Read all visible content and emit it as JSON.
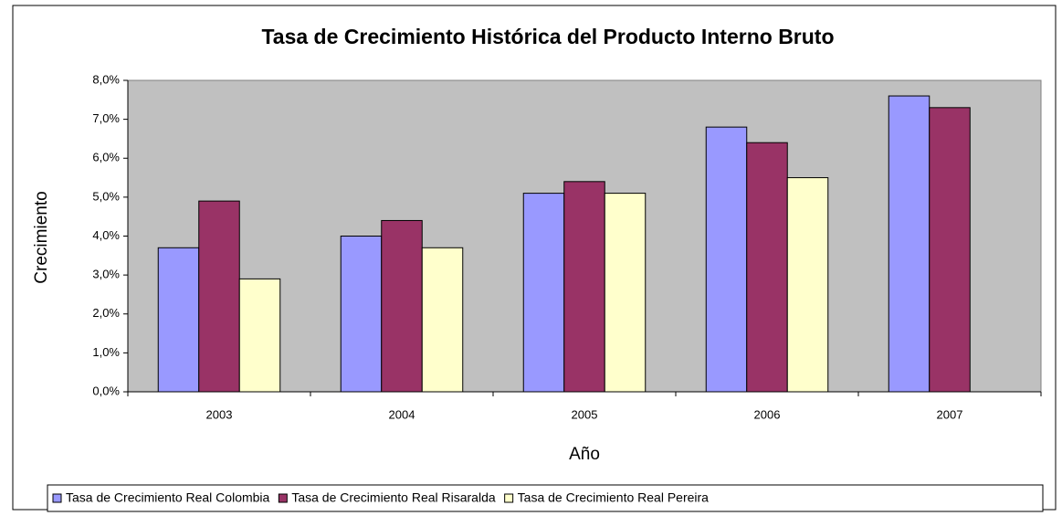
{
  "chart_data": {
    "type": "bar",
    "title": "Tasa de Crecimiento Histórica del Producto Interno Bruto",
    "x_label": "Año",
    "y_label": "Crecimiento",
    "categories": [
      "2003",
      "2004",
      "2005",
      "2006",
      "2007"
    ],
    "series": [
      {
        "name": "Tasa de Crecimiento Real Colombia",
        "color": "#9999ff",
        "values": [
          3.7,
          4.0,
          5.1,
          6.8,
          7.6
        ]
      },
      {
        "name": "Tasa de Crecimiento Real Risaralda",
        "color": "#993366",
        "values": [
          4.9,
          4.4,
          5.4,
          6.4,
          7.3
        ]
      },
      {
        "name": "Tasa de Crecimiento Real Pereira",
        "color": "#ffffcc",
        "values": [
          2.9,
          3.7,
          5.1,
          5.5,
          null
        ]
      }
    ],
    "ylim": [
      0,
      8
    ],
    "yticks": [
      {
        "value": 0,
        "label": "0,0%"
      },
      {
        "value": 1,
        "label": "1,0%"
      },
      {
        "value": 2,
        "label": "2,0%"
      },
      {
        "value": 3,
        "label": "3,0%"
      },
      {
        "value": 4,
        "label": "4,0%"
      },
      {
        "value": 5,
        "label": "5,0%"
      },
      {
        "value": 6,
        "label": "6,0%"
      },
      {
        "value": 7,
        "label": "7,0%"
      },
      {
        "value": 8,
        "label": "8,0%"
      }
    ],
    "grid": false,
    "legend": "bottom",
    "plot_background": "#c0c0c0"
  }
}
